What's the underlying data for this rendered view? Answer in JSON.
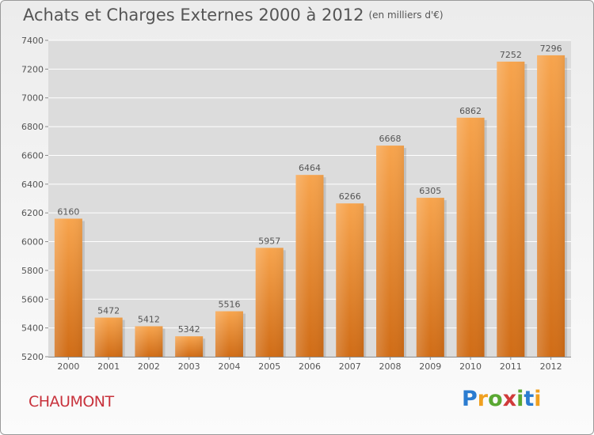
{
  "header": {
    "title": "Achats et Charges Externes 2000 à 2012",
    "subtitle": "(en milliers d'€)"
  },
  "footer": {
    "location": "CHAUMONT",
    "logo_letters": [
      "P",
      "r",
      "o",
      "x",
      "i",
      "t",
      "i"
    ],
    "logo_colors": [
      "#2b7cd0",
      "#f0a020",
      "#5aa832",
      "#d03a3a",
      "#5aa832",
      "#2b7cd0",
      "#f0a020"
    ]
  },
  "colors": {
    "bar_top": "#f7a44d",
    "bar_bottom": "#d06c16",
    "grid": "#ffffff",
    "text": "#555555"
  },
  "chart_data": {
    "type": "bar",
    "title": "Achats et Charges Externes 2000 à 2012",
    "subtitle": "(en milliers d'€)",
    "categories": [
      "2000",
      "2001",
      "2002",
      "2003",
      "2004",
      "2005",
      "2006",
      "2007",
      "2008",
      "2009",
      "2010",
      "2011",
      "2012"
    ],
    "values": [
      6160,
      5472,
      5412,
      5342,
      5516,
      5957,
      6464,
      6266,
      6668,
      6305,
      6862,
      7252,
      7296
    ],
    "ylim": [
      5200,
      7400
    ],
    "yticks": [
      5200,
      5400,
      5600,
      5800,
      6000,
      6200,
      6400,
      6600,
      6800,
      7000,
      7200,
      7400
    ],
    "grid": true,
    "data_labels": true
  }
}
